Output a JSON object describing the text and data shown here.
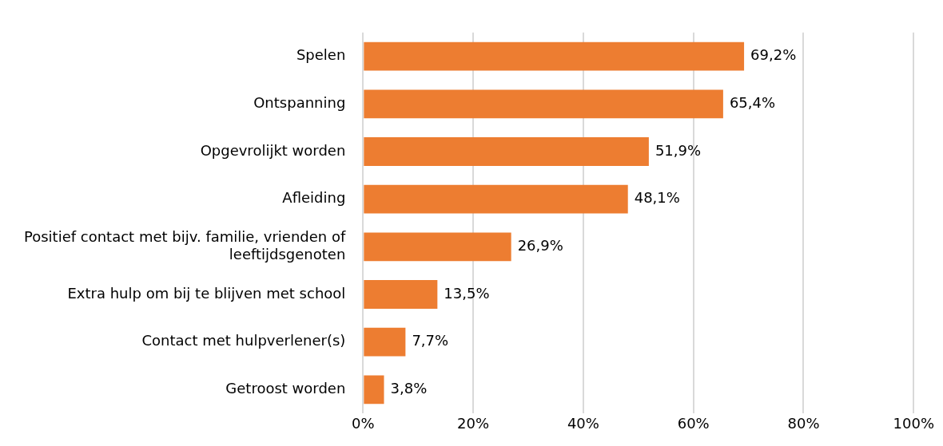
{
  "chart_data": {
    "type": "bar",
    "orientation": "horizontal",
    "categories": [
      "Spelen",
      "Ontspanning",
      "Opgevrolijkt worden",
      "Afleiding",
      "Positief contact met bijv. familie, vrienden of leeftijdsgenoten",
      "Extra hulp om bij te blijven met school",
      "Contact met hulpverlener(s)",
      "Getroost worden"
    ],
    "values": [
      69.2,
      65.4,
      51.9,
      48.1,
      26.9,
      13.5,
      7.7,
      3.8
    ],
    "value_labels": [
      "69,2%",
      "65,4%",
      "51,9%",
      "48,1%",
      "26,9%",
      "13,5%",
      "7,7%",
      "3,8%"
    ],
    "color": "#ed7d31",
    "xlim": [
      0,
      100
    ],
    "xticks": [
      {
        "value": 0,
        "label": "0%"
      },
      {
        "value": 20,
        "label": "20%"
      },
      {
        "value": 40,
        "label": "40%"
      },
      {
        "value": 60,
        "label": "60%"
      },
      {
        "value": 80,
        "label": "80%"
      },
      {
        "value": 100,
        "label": "100%"
      }
    ],
    "grid": "x"
  }
}
